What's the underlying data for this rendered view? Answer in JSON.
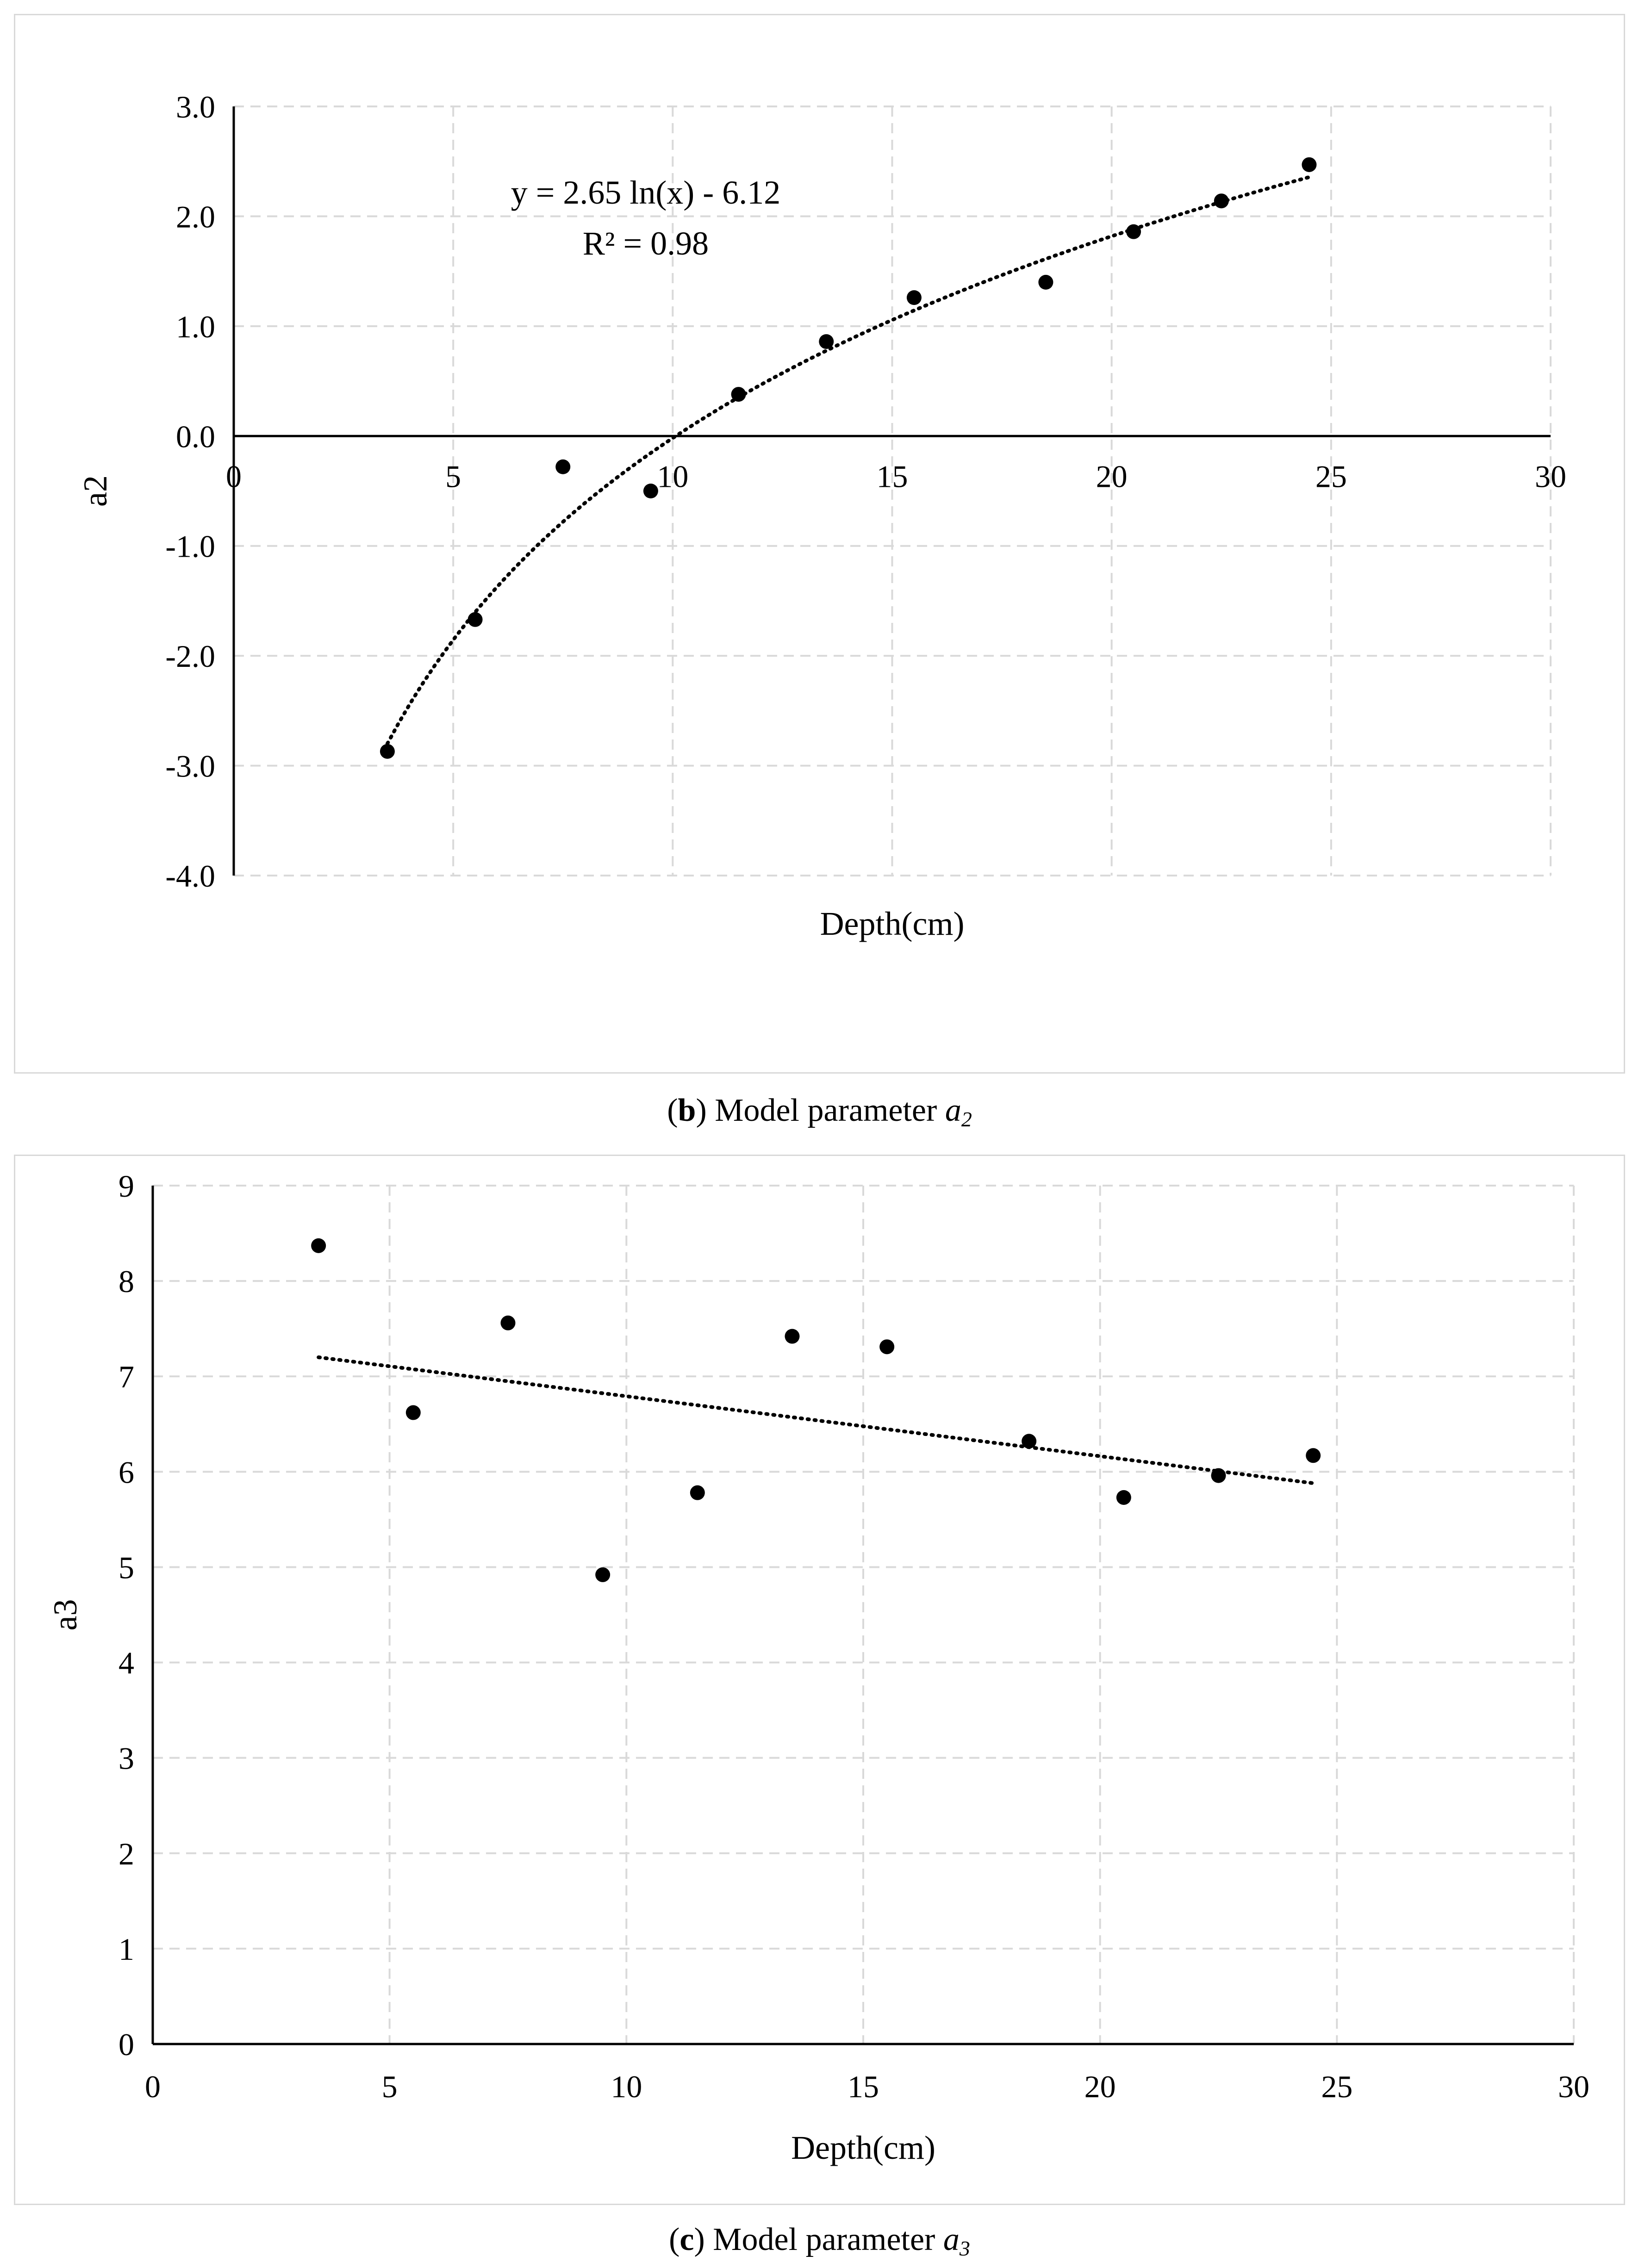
{
  "chart_data": [
    {
      "type": "scatter",
      "panel": "b",
      "xlabel": "Depth(cm)",
      "ylabel": "a2",
      "xlim": [
        0,
        30
      ],
      "ylim": [
        -4.0,
        3.0
      ],
      "xticks": [
        "0",
        "5",
        "10",
        "15",
        "20",
        "25",
        "30"
      ],
      "yticks": [
        "-4.0",
        "-3.0",
        "-2.0",
        "-1.0",
        "0.0",
        "1.0",
        "2.0",
        "3.0"
      ],
      "grid": true,
      "points": [
        {
          "x": 3.5,
          "y": -2.87
        },
        {
          "x": 5.5,
          "y": -1.67
        },
        {
          "x": 7.5,
          "y": -0.28
        },
        {
          "x": 9.5,
          "y": -0.5
        },
        {
          "x": 11.5,
          "y": 0.38
        },
        {
          "x": 13.5,
          "y": 0.86
        },
        {
          "x": 15.5,
          "y": 1.26
        },
        {
          "x": 18.5,
          "y": 1.4
        },
        {
          "x": 20.5,
          "y": 1.86
        },
        {
          "x": 22.5,
          "y": 2.14
        },
        {
          "x": 24.5,
          "y": 2.47
        }
      ],
      "trendline": {
        "kind": "logarithmic",
        "a": 2.65,
        "b": -6.12,
        "x_from": 3.5,
        "x_to": 24.5
      },
      "equation": "y = 2.65 ln(x) - 6.12",
      "r_squared": "R² = 0.98"
    },
    {
      "type": "scatter",
      "panel": "c",
      "xlabel": "Depth(cm)",
      "ylabel": "a3",
      "xlim": [
        0,
        30
      ],
      "ylim": [
        0,
        9
      ],
      "xticks": [
        "0",
        "5",
        "10",
        "15",
        "20",
        "25",
        "30"
      ],
      "yticks": [
        "0",
        "1",
        "2",
        "3",
        "4",
        "5",
        "6",
        "7",
        "8",
        "9"
      ],
      "grid": true,
      "points": [
        {
          "x": 3.5,
          "y": 8.37
        },
        {
          "x": 5.5,
          "y": 6.62
        },
        {
          "x": 7.5,
          "y": 7.56
        },
        {
          "x": 9.5,
          "y": 4.92
        },
        {
          "x": 11.5,
          "y": 5.78
        },
        {
          "x": 13.5,
          "y": 7.42
        },
        {
          "x": 15.5,
          "y": 7.31
        },
        {
          "x": 18.5,
          "y": 6.32
        },
        {
          "x": 20.5,
          "y": 5.73
        },
        {
          "x": 22.5,
          "y": 5.96
        },
        {
          "x": 24.5,
          "y": 6.17
        }
      ],
      "trendline": {
        "kind": "linear",
        "y_start": 7.2,
        "y_end": 5.88,
        "x_from": 3.5,
        "x_to": 24.5
      }
    }
  ],
  "captions": {
    "b": {
      "label": "b",
      "text": ") Model parameter ",
      "symbol": "a",
      "subscript": "2"
    },
    "c": {
      "label": "c",
      "text": ") Model parameter ",
      "symbol": "a",
      "subscript": "3"
    }
  }
}
